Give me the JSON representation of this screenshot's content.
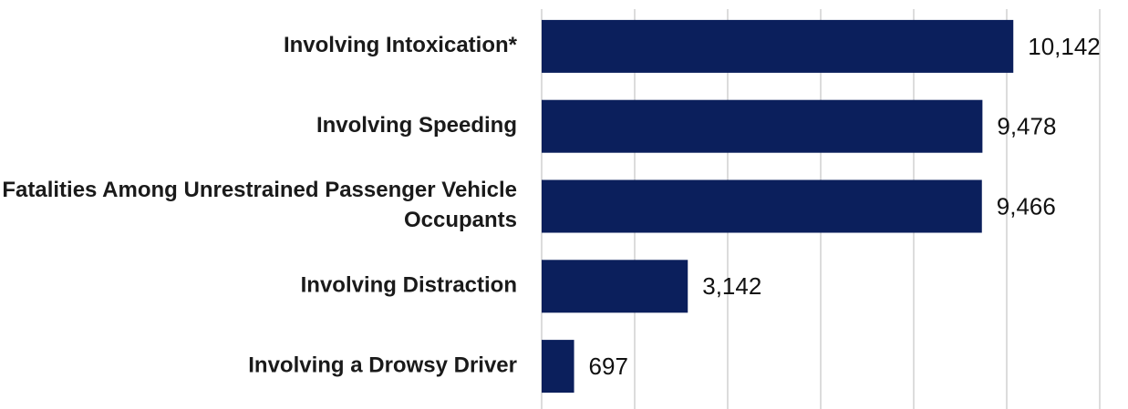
{
  "chart_data": {
    "type": "bar",
    "orientation": "horizontal",
    "categories": [
      "Involving Intoxication*",
      "Involving Speeding",
      "Fatalities Among Unrestrained Passenger Vehicle Occupants",
      "Involving Distraction",
      "Involving a Drowsy Driver"
    ],
    "values": [
      10142,
      9478,
      9466,
      3142,
      697
    ],
    "value_labels": [
      "10,142",
      "9,478",
      "9,466",
      "3,142",
      "697"
    ],
    "color": "#0b1f5c",
    "xlim": [
      0,
      12000
    ],
    "xticks": [
      0,
      2000,
      4000,
      6000,
      8000,
      10000,
      12000
    ],
    "grid": true
  }
}
